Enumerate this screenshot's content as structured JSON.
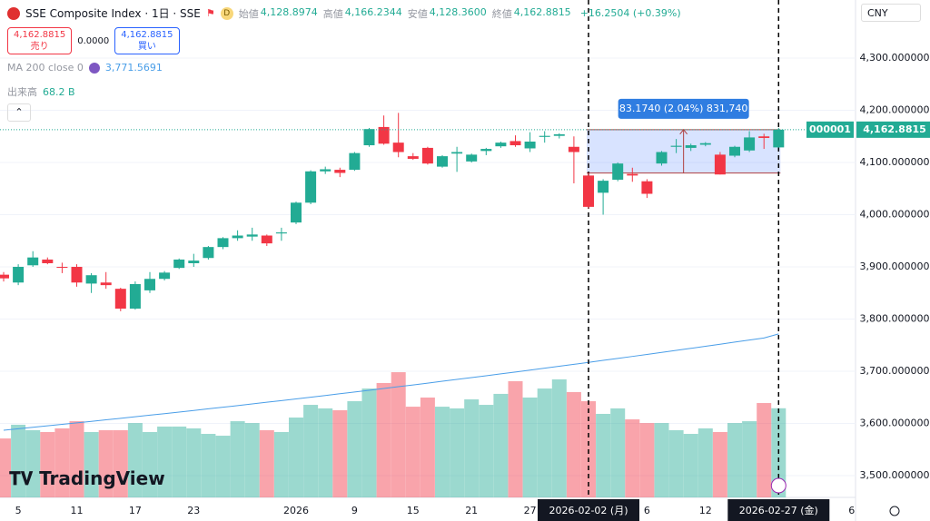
{
  "ui": {
    "symbol": "SSE Composite Index · 1日 · SSE",
    "ohlc": [
      {
        "label": "始値",
        "value": "4,128.8974"
      },
      {
        "label": "高値",
        "value": "4,166.2344"
      },
      {
        "label": "安値",
        "value": "4,128.3600"
      },
      {
        "label": "終値",
        "value": "4,162.8815"
      }
    ],
    "change": "+16.2504 (+0.39%)",
    "sell_price": "4,162.8815",
    "sell_label": "売り",
    "spread": "0.0000",
    "buy_price": "4,162.8815",
    "buy_label": "買い",
    "ma_label": "MA 200 close 0",
    "ma_value": "3,771.5691",
    "volume_label": "出来高",
    "volume_value": "68.2 B",
    "currency": "CNY",
    "symbol_code": "000001",
    "last_price": "4,162.8815",
    "brand": "TradingView"
  },
  "chart_data": {
    "type": "candlestick",
    "up_color": "#22ab94",
    "down_color": "#f23645",
    "ma_color": "#4a9ee8",
    "categories": [
      null,
      "5",
      null,
      null,
      null,
      "11",
      null,
      null,
      null,
      "17",
      null,
      null,
      null,
      "23",
      null,
      null,
      null,
      null,
      null,
      null,
      "2026",
      null,
      null,
      null,
      "9",
      null,
      null,
      null,
      "15",
      null,
      null,
      null,
      "21",
      null,
      null,
      null,
      "27",
      null,
      null,
      null,
      "2026-02-02 (月)",
      null,
      null,
      null,
      "6",
      null,
      null,
      null,
      "12",
      null,
      null,
      null,
      null,
      "2026-02-27 (金)"
    ],
    "extra_x_label": "6",
    "open": [
      3885,
      3870,
      3903,
      3914,
      3900,
      3900,
      3868,
      3870,
      3858,
      3820,
      3855,
      3877,
      3898,
      3907,
      3917,
      3938,
      3955,
      3958,
      3960,
      3964,
      3985,
      4023,
      4083,
      4086,
      4086,
      4133,
      4168,
      4138,
      4112,
      4128,
      4092,
      4117,
      4102,
      4122,
      4131,
      4141,
      4127,
      4149,
      4151,
      4130,
      4075,
      4042,
      4067,
      4078,
      4064,
      4098,
      4130,
      4128,
      4134,
      4115,
      4113,
      4123,
      4150,
      4128.8974
    ],
    "high": [
      3890,
      3905,
      3930,
      3918,
      3908,
      3905,
      3888,
      3890,
      3860,
      3872,
      3890,
      3892,
      3916,
      3925,
      3940,
      3957,
      3970,
      3975,
      3962,
      3975,
      4025,
      4085,
      4092,
      4090,
      4120,
      4166,
      4190,
      4195,
      4118,
      4130,
      4114,
      4130,
      4117,
      4128,
      4140,
      4152,
      4158,
      4160,
      4156,
      4150,
      4080,
      4068,
      4100,
      4090,
      4068,
      4122,
      4145,
      4136,
      4139,
      4120,
      4132,
      4160,
      4155,
      4166.2344
    ],
    "low": [
      3872,
      3865,
      3900,
      3905,
      3888,
      3862,
      3850,
      3858,
      3815,
      3818,
      3850,
      3874,
      3896,
      3900,
      3914,
      3934,
      3950,
      3950,
      3940,
      3950,
      3982,
      4020,
      4078,
      4072,
      4084,
      4130,
      4134,
      4110,
      4105,
      4096,
      4090,
      4082,
      4100,
      4114,
      4128,
      4130,
      4120,
      4138,
      4146,
      4060,
      4012,
      4000,
      4064,
      4063,
      4032,
      4094,
      4118,
      4122,
      4131,
      4077,
      4110,
      4120,
      4126,
      4128.36
    ],
    "close": [
      3878,
      3900,
      3918,
      3907,
      3899,
      3870,
      3884,
      3865,
      3820,
      3867,
      3877,
      3889,
      3914,
      3912,
      3938,
      3955,
      3960,
      3962,
      3945,
      3966,
      4023,
      4083,
      4087,
      4080,
      4118,
      4164,
      4136,
      4120,
      4107,
      4098,
      4112,
      4120,
      4115,
      4126,
      4138,
      4133,
      4140,
      4151,
      4154,
      4120,
      4015,
      4065,
      4098,
      4075,
      4040,
      4120,
      4132,
      4133,
      4137,
      4077,
      4130,
      4148,
      4147,
      4162.8815
    ],
    "volume": [
      45.1,
      55.6,
      51.4,
      50.0,
      52.8,
      58.3,
      50.0,
      51.4,
      51.4,
      56.9,
      50.0,
      54.2,
      54.2,
      52.8,
      48.6,
      47.2,
      58.3,
      56.9,
      51.4,
      50.0,
      61.1,
      70.8,
      68.1,
      66.7,
      73.6,
      83.3,
      87.5,
      95.8,
      69.4,
      76.4,
      69.4,
      68.1,
      75.0,
      70.8,
      79.2,
      88.9,
      76.4,
      83.3,
      90.3,
      80.6,
      73.6,
      63.9,
      68.1,
      59.7,
      56.9,
      56.9,
      51.4,
      48.6,
      52.8,
      50.0,
      56.9,
      58.3,
      72.2,
      68.2
    ],
    "ma_values": [
      3587.0,
      3589.8,
      3592.6,
      3595.4,
      3598.2,
      3601.1,
      3604.0,
      3606.9,
      3609.8,
      3612.8,
      3615.8,
      3618.8,
      3621.8,
      3624.9,
      3628.0,
      3631.1,
      3634.2,
      3637.4,
      3640.6,
      3643.8,
      3647.0,
      3650.3,
      3653.6,
      3656.9,
      3660.2,
      3663.6,
      3667.0,
      3670.4,
      3673.8,
      3677.3,
      3680.8,
      3684.3,
      3687.8,
      3691.4,
      3695.0,
      3698.6,
      3702.2,
      3705.9,
      3709.6,
      3713.3,
      3717.0,
      3720.8,
      3724.6,
      3728.4,
      3732.2,
      3736.1,
      3740.0,
      3743.9,
      3747.8,
      3751.8,
      3755.8,
      3759.8,
      3763.8,
      3771.5691
    ],
    "ylim": [
      3458.3,
      4411.3
    ],
    "yticks": [
      {
        "value": 3500,
        "label": "3,500.000000"
      },
      {
        "value": 3600,
        "label": "3,600.000000"
      },
      {
        "value": 3700,
        "label": "3,700.000000"
      },
      {
        "value": 3800,
        "label": "3,800.000000"
      },
      {
        "value": 3900,
        "label": "3,900.000000"
      },
      {
        "value": 4000,
        "label": "4,000.000000"
      },
      {
        "value": 4100,
        "label": "4,100.000000"
      },
      {
        "value": 4200,
        "label": "4,200.000000"
      },
      {
        "value": 4300,
        "label": "4,300.000000"
      }
    ],
    "grid": true,
    "measure": {
      "from_index": 40,
      "to_index": 53,
      "low": 4079.7075,
      "high": 4162.8815,
      "label": "83.1740 (2.04%) 831,740"
    }
  }
}
